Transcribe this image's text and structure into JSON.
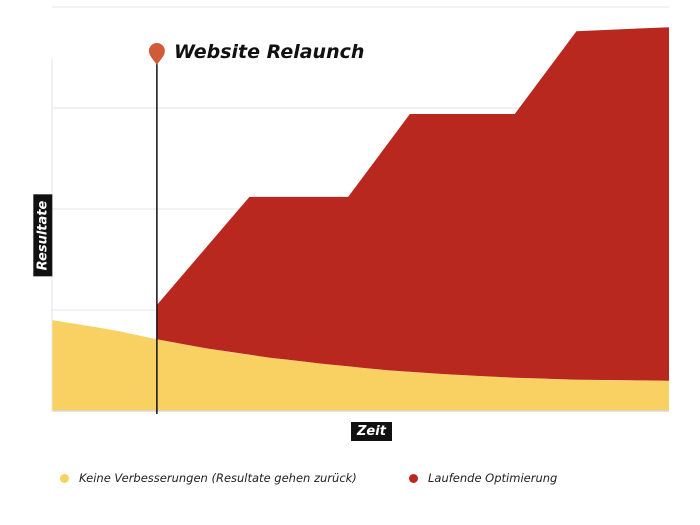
{
  "chart_data": {
    "type": "area",
    "annotation": {
      "label": "Website Relaunch",
      "x": 1.7
    },
    "xlabel": "Zeit",
    "ylabel": "Resultate",
    "xlim": [
      0,
      10
    ],
    "ylim": [
      0,
      4
    ],
    "grid": true,
    "legend_position": "bottom",
    "series": [
      {
        "name": "Keine Verbesserungen (Resultate gehen zurück)",
        "color": "#F8D162",
        "x": [
          0,
          1,
          1.7,
          2.5,
          3.5,
          4.5,
          5.5,
          6.5,
          7.5,
          8.5,
          10
        ],
        "y": [
          0.9,
          0.8,
          0.71,
          0.62,
          0.53,
          0.46,
          0.4,
          0.36,
          0.33,
          0.31,
          0.3
        ]
      },
      {
        "name": "Laufende Optimierung",
        "color": "#B9281F",
        "x": [
          1.7,
          3.2,
          4.8,
          5.8,
          7.5,
          8.5,
          10
        ],
        "y": [
          1.05,
          2.12,
          2.12,
          2.94,
          2.94,
          3.76,
          3.8
        ]
      }
    ]
  },
  "colors": {
    "accent": "#B9281F",
    "yellow": "#F8D162",
    "marker": "#D15A38"
  },
  "icons": {
    "annotation_marker": "map-pin-icon"
  }
}
